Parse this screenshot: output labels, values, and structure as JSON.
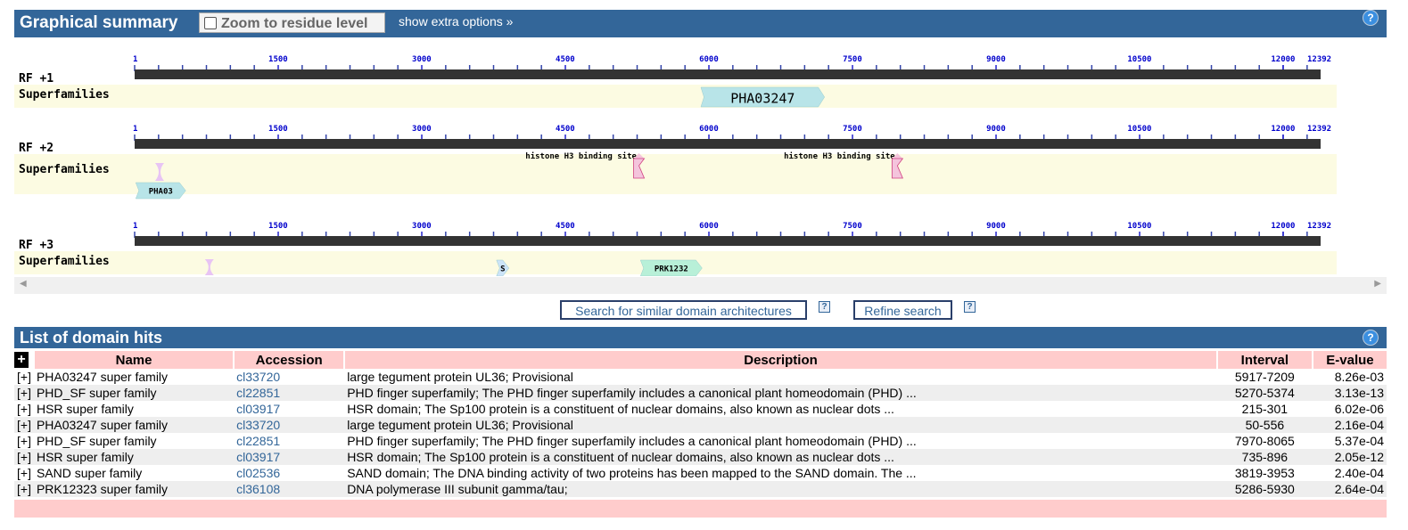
{
  "summary": {
    "title": "Graphical summary",
    "zoom_label": "Zoom to residue level",
    "extra_options": "show extra options »",
    "help_icon": "?"
  },
  "ruler_ticks": [
    "1",
    "1500",
    "3000",
    "4500",
    "6000",
    "7500",
    "9000",
    "10500",
    "12000",
    "12392"
  ],
  "ruler_max": 12392,
  "frames": [
    {
      "rf_label": "RF +1",
      "track_label": "Superfamilies",
      "sites": [],
      "domains": [
        {
          "label": "PHA03247",
          "start": 5917,
          "end": 7209,
          "color": "#b8e4e8",
          "text_color": "#000"
        }
      ]
    },
    {
      "rf_label": "RF +2",
      "track_label": "Superfamilies",
      "sites": [
        {
          "label": "histone H3 binding site",
          "pos": 5320
        },
        {
          "label": "histone H3 binding site",
          "pos": 8020
        }
      ],
      "domains": [
        {
          "label": "PHA03",
          "start": 50,
          "end": 556,
          "color": "#b8e4e8",
          "text_color": "#000"
        }
      ],
      "small_marks": [
        {
          "start": 215,
          "end": 301,
          "color": "#e8c4f4"
        },
        {
          "start": 5270,
          "end": 5374,
          "color": "#f4c4dc"
        },
        {
          "start": 7970,
          "end": 8065,
          "color": "#f4c4dc"
        }
      ]
    },
    {
      "rf_label": "RF +3",
      "track_label": "Superfamilies",
      "sites": [],
      "domains": [
        {
          "label": "S",
          "start": 3819,
          "end": 3953,
          "color": "#cce4f8",
          "text_color": "#000"
        },
        {
          "label": "PRK1232",
          "start": 5286,
          "end": 5930,
          "color": "#b8f0d8",
          "text_color": "#000"
        }
      ],
      "small_marks": [
        {
          "start": 735,
          "end": 896,
          "color": "#e8c4f4"
        }
      ]
    }
  ],
  "buttons": {
    "similar": "Search for similar domain architectures",
    "refine": "Refine search",
    "help": "?"
  },
  "hits": {
    "title": "List of domain hits",
    "help_icon": "?",
    "expand_all": "+",
    "columns": [
      "Name",
      "Accession",
      "Description",
      "Interval",
      "E-value"
    ],
    "rows": [
      {
        "expand": "[+]",
        "name": "PHA03247 super family",
        "accession": "cl33720",
        "description": "large tegument protein UL36; Provisional",
        "interval": "5917-7209",
        "evalue": "8.26e-03"
      },
      {
        "expand": "[+]",
        "name": "PHD_SF super family",
        "accession": "cl22851",
        "description": "PHD finger superfamily; The PHD finger superfamily includes a canonical plant homeodomain (PHD) ...",
        "interval": "5270-5374",
        "evalue": "3.13e-13"
      },
      {
        "expand": "[+]",
        "name": "HSR super family",
        "accession": "cl03917",
        "description": "HSR domain; The Sp100 protein is a constituent of nuclear domains, also known as nuclear dots ...",
        "interval": "215-301",
        "evalue": "6.02e-06"
      },
      {
        "expand": "[+]",
        "name": "PHA03247 super family",
        "accession": "cl33720",
        "description": "large tegument protein UL36; Provisional",
        "interval": "50-556",
        "evalue": "2.16e-04"
      },
      {
        "expand": "[+]",
        "name": "PHD_SF super family",
        "accession": "cl22851",
        "description": "PHD finger superfamily; The PHD finger superfamily includes a canonical plant homeodomain (PHD) ...",
        "interval": "7970-8065",
        "evalue": "5.37e-04"
      },
      {
        "expand": "[+]",
        "name": "HSR super family",
        "accession": "cl03917",
        "description": "HSR domain; The Sp100 protein is a constituent of nuclear domains, also known as nuclear dots ...",
        "interval": "735-896",
        "evalue": "2.05e-12"
      },
      {
        "expand": "[+]",
        "name": "SAND super family",
        "accession": "cl02536",
        "description": "SAND domain; The DNA binding activity of two proteins has been mapped to the SAND domain. The ...",
        "interval": "3819-3953",
        "evalue": "2.40e-04"
      },
      {
        "expand": "[+]",
        "name": "PRK12323 super family",
        "accession": "cl36108",
        "description": "DNA polymerase III subunit gamma/tau;",
        "interval": "5286-5930",
        "evalue": "2.64e-04"
      }
    ]
  }
}
